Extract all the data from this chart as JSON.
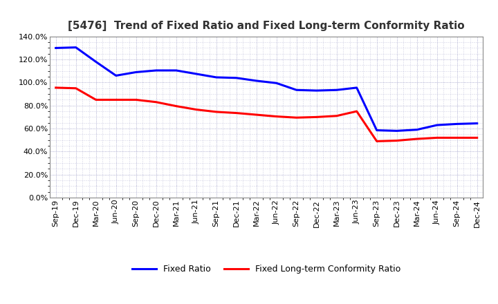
{
  "title": "[5476]  Trend of Fixed Ratio and Fixed Long-term Conformity Ratio",
  "labels": [
    "Sep-19",
    "Dec-19",
    "Mar-20",
    "Jun-20",
    "Sep-20",
    "Dec-20",
    "Mar-21",
    "Jun-21",
    "Sep-21",
    "Dec-21",
    "Mar-22",
    "Jun-22",
    "Sep-22",
    "Dec-22",
    "Mar-23",
    "Jun-23",
    "Sep-23",
    "Dec-23",
    "Mar-24",
    "Jun-24",
    "Sep-24",
    "Dec-24"
  ],
  "fixed_ratio": [
    130.0,
    130.5,
    118.0,
    106.0,
    109.0,
    110.5,
    110.5,
    107.5,
    104.5,
    104.0,
    101.5,
    99.5,
    93.5,
    93.0,
    93.5,
    95.5,
    58.5,
    58.0,
    59.0,
    63.0,
    64.0,
    64.5
  ],
  "fixed_lt_ratio": [
    95.5,
    95.0,
    85.0,
    85.0,
    85.0,
    83.0,
    79.5,
    76.5,
    74.5,
    73.5,
    72.0,
    70.5,
    69.5,
    70.0,
    71.0,
    75.0,
    49.0,
    49.5,
    51.0,
    52.0,
    52.0,
    52.0
  ],
  "fixed_ratio_color": "#0000FF",
  "fixed_lt_ratio_color": "#FF0000",
  "background_color": "#FFFFFF",
  "plot_bg_color": "#FFFFFF",
  "grid_color": "#8888BB",
  "ylim": [
    0,
    140
  ],
  "yticks": [
    0,
    20,
    40,
    60,
    80,
    100,
    120,
    140
  ],
  "legend_fixed_ratio": "Fixed Ratio",
  "legend_fixed_lt_ratio": "Fixed Long-term Conformity Ratio",
  "title_fontsize": 11,
  "tick_fontsize": 8,
  "legend_fontsize": 9
}
